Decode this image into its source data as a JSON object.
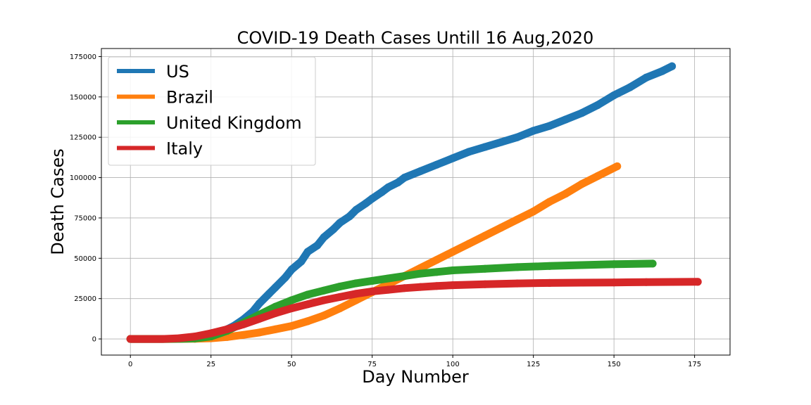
{
  "chart_data": {
    "type": "scatter",
    "title": "COVID-19 Death Cases Untill 16 Aug,2020",
    "xlabel": "Day Number",
    "ylabel": "Death Cases",
    "xlim": [
      -9,
      186
    ],
    "ylim": [
      -10000,
      180000
    ],
    "xticks": [
      0,
      25,
      50,
      75,
      100,
      125,
      150,
      175
    ],
    "yticks": [
      0,
      25000,
      50000,
      75000,
      100000,
      125000,
      150000,
      175000
    ],
    "grid": true,
    "legend_position": "upper-left",
    "series": [
      {
        "name": "US",
        "color": "#1f77b4",
        "x": [
          0,
          10,
          15,
          20,
          25,
          28,
          30,
          32,
          35,
          38,
          40,
          43,
          45,
          48,
          50,
          53,
          55,
          58,
          60,
          63,
          65,
          68,
          70,
          73,
          75,
          78,
          80,
          83,
          85,
          90,
          95,
          100,
          105,
          110,
          115,
          120,
          125,
          130,
          135,
          140,
          145,
          150,
          155,
          160,
          165,
          168
        ],
        "y": [
          0,
          0,
          50,
          600,
          2500,
          4000,
          6000,
          8000,
          12000,
          17000,
          22000,
          28000,
          32000,
          38000,
          43000,
          48000,
          54000,
          58000,
          63000,
          68000,
          72000,
          76000,
          80000,
          84000,
          87000,
          91000,
          94000,
          97000,
          100000,
          104000,
          108000,
          112000,
          116000,
          119000,
          122000,
          125000,
          129000,
          132000,
          136000,
          140000,
          145000,
          151000,
          156000,
          162000,
          166000,
          169000
        ]
      },
      {
        "name": "Brazil",
        "color": "#ff7f0e",
        "x": [
          0,
          10,
          20,
          25,
          30,
          35,
          40,
          45,
          50,
          55,
          60,
          65,
          70,
          75,
          80,
          85,
          90,
          95,
          100,
          105,
          110,
          115,
          120,
          125,
          130,
          135,
          140,
          145,
          151
        ],
        "y": [
          0,
          0,
          100,
          400,
          1200,
          2500,
          4000,
          6000,
          8000,
          11000,
          14500,
          19000,
          24000,
          29000,
          34000,
          39000,
          44000,
          49000,
          54000,
          59000,
          64000,
          69000,
          74000,
          79000,
          85000,
          90000,
          96000,
          101000,
          107000
        ]
      },
      {
        "name": "United Kingdom",
        "color": "#2ca02c",
        "x": [
          0,
          10,
          15,
          20,
          25,
          30,
          35,
          40,
          45,
          50,
          55,
          60,
          65,
          70,
          75,
          80,
          85,
          90,
          95,
          100,
          110,
          120,
          130,
          140,
          150,
          162
        ],
        "y": [
          0,
          0,
          10,
          300,
          1500,
          5000,
          10000,
          15000,
          20000,
          24000,
          27500,
          30000,
          32500,
          34500,
          36000,
          37500,
          39000,
          40500,
          41500,
          42500,
          43500,
          44500,
          45200,
          45800,
          46300,
          46700
        ]
      },
      {
        "name": "Italy",
        "color": "#d62728",
        "x": [
          0,
          10,
          15,
          20,
          25,
          30,
          35,
          40,
          45,
          50,
          55,
          60,
          65,
          70,
          75,
          80,
          85,
          90,
          95,
          100,
          110,
          120,
          130,
          140,
          150,
          160,
          176
        ],
        "y": [
          0,
          0,
          400,
          1500,
          3500,
          6000,
          9000,
          12500,
          16000,
          19000,
          21500,
          24000,
          26000,
          28000,
          29500,
          30500,
          31500,
          32200,
          32800,
          33300,
          33900,
          34400,
          34700,
          34900,
          35000,
          35200,
          35400
        ]
      }
    ]
  }
}
